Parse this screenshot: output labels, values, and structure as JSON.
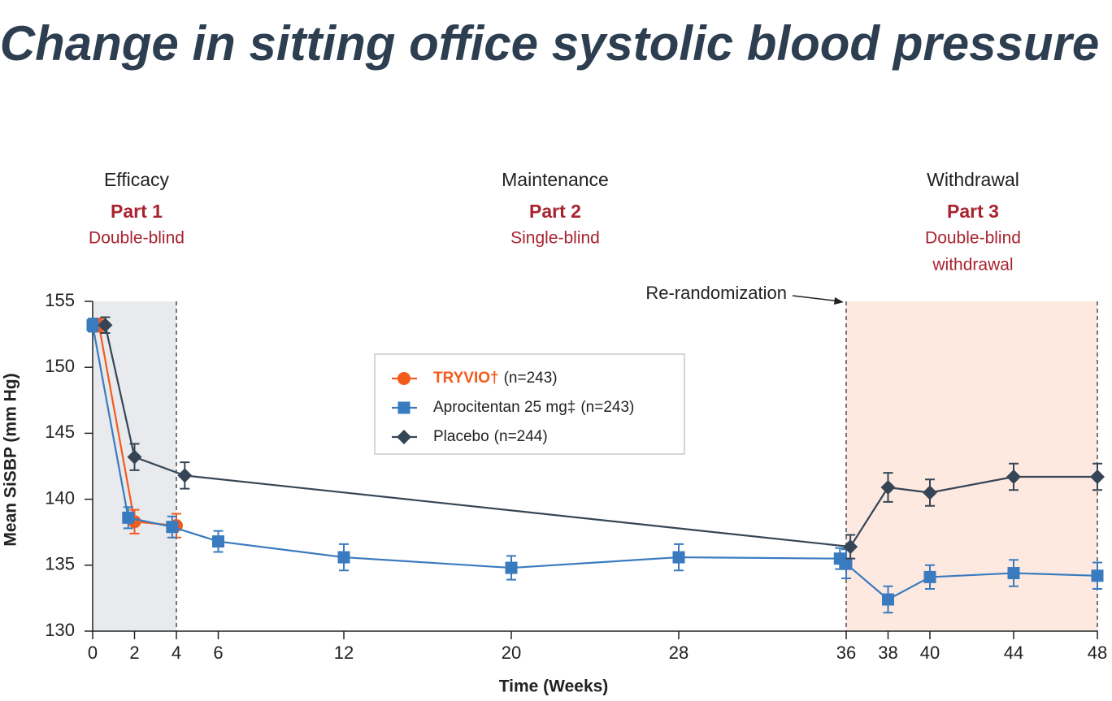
{
  "chart_data": {
    "type": "line",
    "title": "Change in sitting office systolic blood pressure",
    "phases": [
      {
        "name": "Efficacy",
        "part": "Part 1",
        "design": [
          "Double-blind"
        ]
      },
      {
        "name": "Maintenance",
        "part": "Part 2",
        "design": [
          "Single-blind"
        ]
      },
      {
        "name": "Withdrawal",
        "part": "Part 3",
        "design": [
          "Double-blind",
          "withdrawal"
        ]
      }
    ],
    "annotation": "Re-randomization",
    "x_label": "Time (Weeks)",
    "y_label": "Mean SiSBP (mm Hg)",
    "xlim": [
      0,
      48
    ],
    "ylim": [
      130,
      155
    ],
    "xticks": [
      0,
      2,
      4,
      6,
      12,
      20,
      28,
      36,
      38,
      40,
      44,
      48
    ],
    "yticks": [
      130,
      135,
      140,
      145,
      150,
      155
    ],
    "shaded_regions": [
      {
        "xlim": [
          0,
          4
        ],
        "color": "#e8eaed"
      },
      {
        "xlim": [
          36,
          48
        ],
        "color": "#fde9e0"
      }
    ],
    "vlines": [
      4,
      36,
      48
    ],
    "series": [
      {
        "name": "TRYVIO†",
        "legend_suffix": "(n=243)",
        "color": "#f35b1c",
        "marker": "circle",
        "x": [
          0.3,
          2,
          4
        ],
        "values": [
          153.2,
          138.3,
          138.0
        ],
        "errors": [
          0.5,
          0.9,
          0.9
        ]
      },
      {
        "name": "Aprocitentan 25 mg‡",
        "legend_suffix": "(n=243)",
        "color": "#3a7bbf",
        "marker": "square",
        "x": [
          0,
          1.7,
          3.8,
          6,
          12,
          20,
          28,
          35.7,
          36,
          38,
          40,
          44,
          48
        ],
        "values": [
          153.2,
          138.6,
          137.9,
          136.8,
          135.6,
          134.8,
          135.6,
          135.5,
          135.1,
          132.4,
          134.1,
          134.4,
          134.2
        ],
        "errors": [
          0.5,
          0.8,
          0.8,
          0.8,
          1.0,
          0.9,
          1.0,
          0.8,
          1.1,
          1.0,
          0.9,
          1.0,
          1.0
        ]
      },
      {
        "name": "Placebo",
        "legend_suffix": "(n=244)",
        "color": "#364556",
        "marker": "diamond",
        "x": [
          0.6,
          2,
          4.4,
          36.2,
          38,
          40,
          44,
          48
        ],
        "values": [
          153.2,
          143.2,
          141.8,
          136.4,
          140.9,
          140.5,
          141.7,
          141.7
        ],
        "errors": [
          0.6,
          1.0,
          1.0,
          0.9,
          1.1,
          1.0,
          1.0,
          1.0
        ]
      }
    ]
  }
}
